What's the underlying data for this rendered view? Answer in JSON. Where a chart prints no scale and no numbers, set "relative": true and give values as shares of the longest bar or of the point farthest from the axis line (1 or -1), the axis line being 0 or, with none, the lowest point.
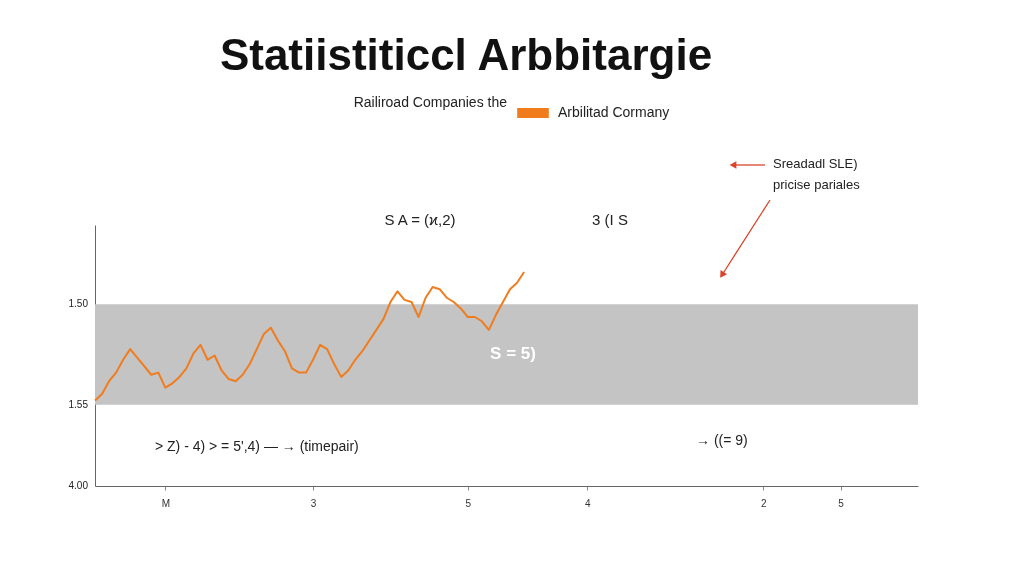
{
  "chart_data": {
    "type": "line",
    "title": "Statiistiticcl Arbbitargie",
    "subtitle": "Railiroad Companies the",
    "relative": true,
    "categories": [
      null,
      null,
      null,
      null,
      null,
      null,
      null,
      null,
      null,
      null,
      "M",
      null,
      null,
      null,
      null,
      null,
      null,
      null,
      null,
      null,
      null,
      null,
      null,
      null,
      null,
      null,
      null,
      null,
      null,
      null,
      null,
      "3",
      null,
      null,
      null,
      null,
      null,
      null,
      null,
      null,
      null,
      null,
      null,
      null,
      null,
      null,
      null,
      null,
      null,
      null,
      null,
      null,
      null,
      "5",
      null,
      null,
      null,
      null,
      null,
      null,
      null,
      null,
      null,
      null,
      null,
      null,
      null,
      null,
      null,
      null,
      "4",
      null,
      null,
      null,
      null,
      null,
      null,
      null,
      null,
      null,
      null,
      null,
      null,
      null,
      null,
      null,
      null,
      null,
      null,
      null,
      null,
      null,
      null,
      null,
      null,
      "2",
      null,
      null,
      null,
      null,
      null,
      null,
      null,
      null,
      null,
      null,
      "5",
      null,
      null,
      null,
      null,
      null,
      null,
      null,
      null,
      null,
      null,
      null
    ],
    "series": [
      {
        "name": "Arbilitad Cormany",
        "color": "#f07c1e",
        "values": [
          0.4,
          0.43,
          0.49,
          0.53,
          0.59,
          0.64,
          0.6,
          0.56,
          0.52,
          0.53,
          0.46,
          0.48,
          0.51,
          0.55,
          0.62,
          0.66,
          0.59,
          0.61,
          0.54,
          0.5,
          0.49,
          0.52,
          0.57,
          0.64,
          0.71,
          0.74,
          0.68,
          0.63,
          0.55,
          0.53,
          0.53,
          0.59,
          0.66,
          0.64,
          0.57,
          0.51,
          0.54,
          0.59,
          0.63,
          0.68,
          0.73,
          0.78,
          0.86,
          0.91,
          0.87,
          0.86,
          0.79,
          0.88,
          0.93,
          0.92,
          0.88,
          0.86,
          0.83,
          0.79,
          0.79,
          0.77,
          0.73,
          0.8,
          0.86,
          0.92,
          0.95,
          1,
          null,
          null,
          null,
          null,
          null,
          null,
          null,
          null,
          null,
          null,
          null,
          null,
          null,
          null,
          null,
          null,
          null,
          null,
          null,
          null,
          null,
          null,
          null,
          null,
          null,
          null,
          null,
          null,
          null,
          null,
          null,
          null,
          null,
          null,
          null,
          null,
          null,
          null,
          null,
          null,
          null,
          null,
          null,
          null,
          null,
          null,
          null,
          null,
          null,
          null,
          null,
          null,
          null,
          null,
          null,
          null
        ]
      }
    ],
    "bands": [
      {
        "axis": "y",
        "from": 0.38,
        "to": 0.85,
        "label": "S = 5)",
        "color": "#c4c4c4"
      }
    ],
    "annotations": [
      "S A = (ϰ,2)",
      "3 (I S",
      "> Z) - 4)  > = 5',4) — → (timepair)",
      "→ ((= 9)",
      "Sreadadl SLE)",
      "pricise pariales",
      "1.50",
      "1.55",
      "4.00"
    ],
    "legend": "top",
    "grid": false,
    "marker": "none",
    "line_style": "solid"
  }
}
